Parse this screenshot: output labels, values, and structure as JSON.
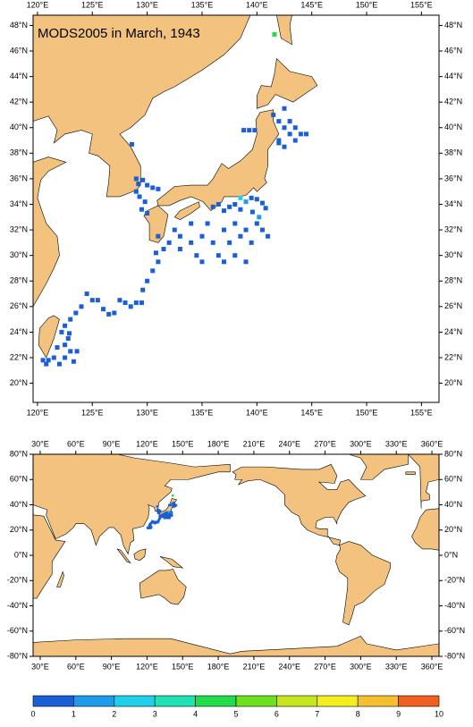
{
  "chart_data": [
    {
      "type": "map",
      "title": "MODS2005 in March, 1943",
      "xlim": [
        119.6,
        156.6
      ],
      "ylim": [
        18.5,
        48.8
      ],
      "xticks": [
        {
          "value": 120,
          "label": "120°E"
        },
        {
          "value": 125,
          "label": "125°E"
        },
        {
          "value": 130,
          "label": "130°E"
        },
        {
          "value": 135,
          "label": "135°E"
        },
        {
          "value": 140,
          "label": "140°E"
        },
        {
          "value": 145,
          "label": "145°E"
        },
        {
          "value": 150,
          "label": "150°E"
        },
        {
          "value": 155,
          "label": "155°E"
        }
      ],
      "yticks": [
        {
          "value": 20,
          "label": "20°N"
        },
        {
          "value": 22,
          "label": "22°N"
        },
        {
          "value": 24,
          "label": "24°N"
        },
        {
          "value": 26,
          "label": "26°N"
        },
        {
          "value": 28,
          "label": "28°N"
        },
        {
          "value": 30,
          "label": "30°N"
        },
        {
          "value": 32,
          "label": "32°N"
        },
        {
          "value": 34,
          "label": "34°N"
        },
        {
          "value": 36,
          "label": "36°N"
        },
        {
          "value": 38,
          "label": "38°N"
        },
        {
          "value": 40,
          "label": "40°N"
        },
        {
          "value": 42,
          "label": "42°N"
        },
        {
          "value": 44,
          "label": "44°N"
        },
        {
          "value": 46,
          "label": "46°N"
        },
        {
          "value": 48,
          "label": "48°N"
        }
      ],
      "land_color": "#f2c27e",
      "x": [
        141.6,
        138.8,
        139.3,
        139.8,
        141.5,
        142,
        142.5,
        142.5,
        143,
        143,
        143.5,
        142,
        142.5,
        143.5,
        144,
        144.5,
        142,
        128.6,
        129,
        129.2,
        129.6,
        130,
        130.5,
        131,
        129,
        129.3,
        129.8,
        129.5,
        130,
        136,
        136.5,
        137,
        137.5,
        138,
        138.5,
        139,
        139.5,
        140,
        140.5,
        140.8,
        138.5,
        139.6,
        140.2,
        131,
        131.5,
        132,
        132.5,
        133,
        133,
        134,
        134,
        134.5,
        135,
        135,
        135.5,
        136,
        136.5,
        137,
        137,
        137.5,
        138,
        138,
        138.5,
        139,
        139,
        139.5,
        140,
        140.5,
        141,
        130.8,
        131,
        130.5,
        130,
        129.6,
        128,
        128.5,
        129,
        129.5,
        127.5,
        127,
        126.5,
        126,
        125.5,
        125,
        124.5,
        124,
        123.5,
        123,
        122.5,
        122.8,
        122.5,
        123,
        122.5,
        122,
        121.5,
        121,
        120.5,
        121.8,
        122.2,
        120.8,
        122.9,
        123.3,
        123.6
      ],
      "y": [
        47.3,
        39.8,
        39.8,
        39.8,
        41,
        40.5,
        41.5,
        40,
        40.5,
        39.5,
        40,
        39,
        38.5,
        39,
        39.5,
        39.5,
        38.8,
        38.7,
        36,
        35.6,
        35.9,
        35.5,
        35.3,
        35.2,
        35,
        34.6,
        34.2,
        33.6,
        33.3,
        33.8,
        34,
        33.5,
        33.8,
        34,
        33.6,
        34.2,
        34.5,
        34.4,
        34.1,
        33.7,
        34.5,
        33.4,
        33,
        31.5,
        30.5,
        31,
        32,
        31.5,
        30.5,
        32.5,
        31,
        30,
        29.5,
        31.5,
        32.5,
        31,
        30,
        32,
        29.5,
        31,
        30,
        32.5,
        31.5,
        29.5,
        32,
        31,
        32.5,
        32,
        31.5,
        30.2,
        29.5,
        28.8,
        28,
        27.3,
        26.3,
        26,
        26.3,
        26.3,
        26.5,
        25.5,
        25.4,
        25.8,
        26.5,
        26.5,
        27,
        26,
        25.5,
        25,
        24.5,
        23.5,
        23,
        22.5,
        22,
        21.5,
        22,
        21.8,
        21.8,
        22.8,
        24,
        21.5,
        23.9,
        21.7,
        22.5
      ],
      "values": [
        4.5,
        0.5,
        0.5,
        0.5,
        0.5,
        0.5,
        0.5,
        0.5,
        0.5,
        0.5,
        0.5,
        0.5,
        0.5,
        0.5,
        0.5,
        0.5,
        0.5,
        0.5,
        0.5,
        0.5,
        0.5,
        0.5,
        0.5,
        0.5,
        0.5,
        0.5,
        0.5,
        0.5,
        0.5,
        0.5,
        0.5,
        0.5,
        0.5,
        0.5,
        0.5,
        1.5,
        0.5,
        0.5,
        0.5,
        0.5,
        2.5,
        0.5,
        1.5,
        0.5,
        0.5,
        0.5,
        0.5,
        0.5,
        0.5,
        0.5,
        0.5,
        0.5,
        0.5,
        0.5,
        0.5,
        0.5,
        0.5,
        0.5,
        0.5,
        0.5,
        0.5,
        0.5,
        0.5,
        0.5,
        0.5,
        0.5,
        0.5,
        0.5,
        0.5,
        0.5,
        0.5,
        0.5,
        0.5,
        0.5,
        0.5,
        0.5,
        0.5,
        0.5,
        0.5,
        0.5,
        0.5,
        0.5,
        0.5,
        0.5,
        0.5,
        0.5,
        0.5,
        0.5,
        0.5,
        0.5,
        0.5,
        0.5,
        0.5,
        0.5,
        0.5,
        0.5,
        0.5,
        0.5,
        0.5,
        0.5,
        0.5,
        0.5,
        0.5
      ]
    },
    {
      "type": "map",
      "xlim": [
        24,
        366
      ],
      "ylim": [
        -80,
        80
      ],
      "xticks": [
        {
          "value": 30,
          "label": "30°E"
        },
        {
          "value": 60,
          "label": "60°E"
        },
        {
          "value": 90,
          "label": "90°E"
        },
        {
          "value": 120,
          "label": "120°E"
        },
        {
          "value": 150,
          "label": "150°E"
        },
        {
          "value": 180,
          "label": "180°E"
        },
        {
          "value": 210,
          "label": "210°E"
        },
        {
          "value": 240,
          "label": "240°E"
        },
        {
          "value": 270,
          "label": "270°E"
        },
        {
          "value": 300,
          "label": "300°E"
        },
        {
          "value": 330,
          "label": "330°E"
        },
        {
          "value": 360,
          "label": "360°E"
        }
      ],
      "yticks": [
        {
          "value": -80,
          "label": "-80°N"
        },
        {
          "value": -60,
          "label": "-60°N"
        },
        {
          "value": -40,
          "label": "-40°N"
        },
        {
          "value": -20,
          "label": "-20°N"
        },
        {
          "value": 0,
          "label": "0°N"
        },
        {
          "value": 20,
          "label": "20°N"
        },
        {
          "value": 40,
          "label": "40°N"
        },
        {
          "value": 60,
          "label": "60°N"
        },
        {
          "value": 80,
          "label": "80°N"
        }
      ],
      "land_color": "#f2c27e"
    },
    {
      "type": "colorbar",
      "levels": [
        0,
        1,
        2,
        3,
        4,
        5,
        6,
        7,
        8,
        9,
        10
      ],
      "colors": [
        "#1a5fd6",
        "#1e9cec",
        "#22cfe8",
        "#22e0b4",
        "#22dc4c",
        "#6ee020",
        "#c8e620",
        "#f4f020",
        "#f4c030",
        "#f06020"
      ]
    }
  ]
}
